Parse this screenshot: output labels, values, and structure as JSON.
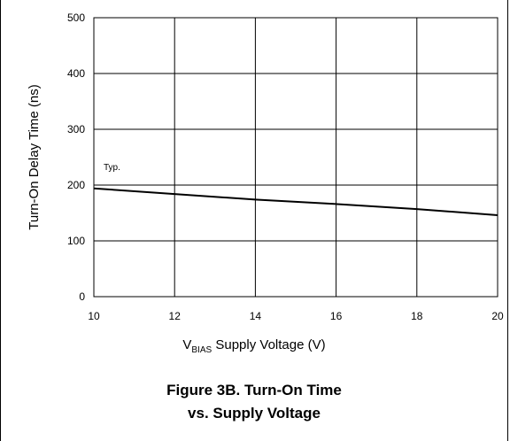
{
  "chart_data": {
    "type": "line",
    "x": [
      10,
      12,
      14,
      16,
      18,
      20
    ],
    "series": [
      {
        "values": [
          194,
          184,
          174,
          166,
          157,
          146
        ]
      }
    ],
    "annotation": "Typ.",
    "ylabel": "Turn-On Delay Time (ns)",
    "xlabel_main": "V",
    "xlabel_sub": "BIAS",
    "xlabel_rest": " Supply  Voltage (V)",
    "xlim": [
      10,
      20
    ],
    "ylim": [
      0,
      500
    ],
    "xticks": [
      "10",
      "12",
      "14",
      "16",
      "18",
      "20"
    ],
    "yticks": [
      "0",
      "100",
      "200",
      "300",
      "400",
      "500"
    ],
    "grid": true,
    "line_color": "#000000"
  },
  "caption": {
    "line1": "Figure 3B. Turn-On Time",
    "line2": "vs. Supply Voltage"
  }
}
